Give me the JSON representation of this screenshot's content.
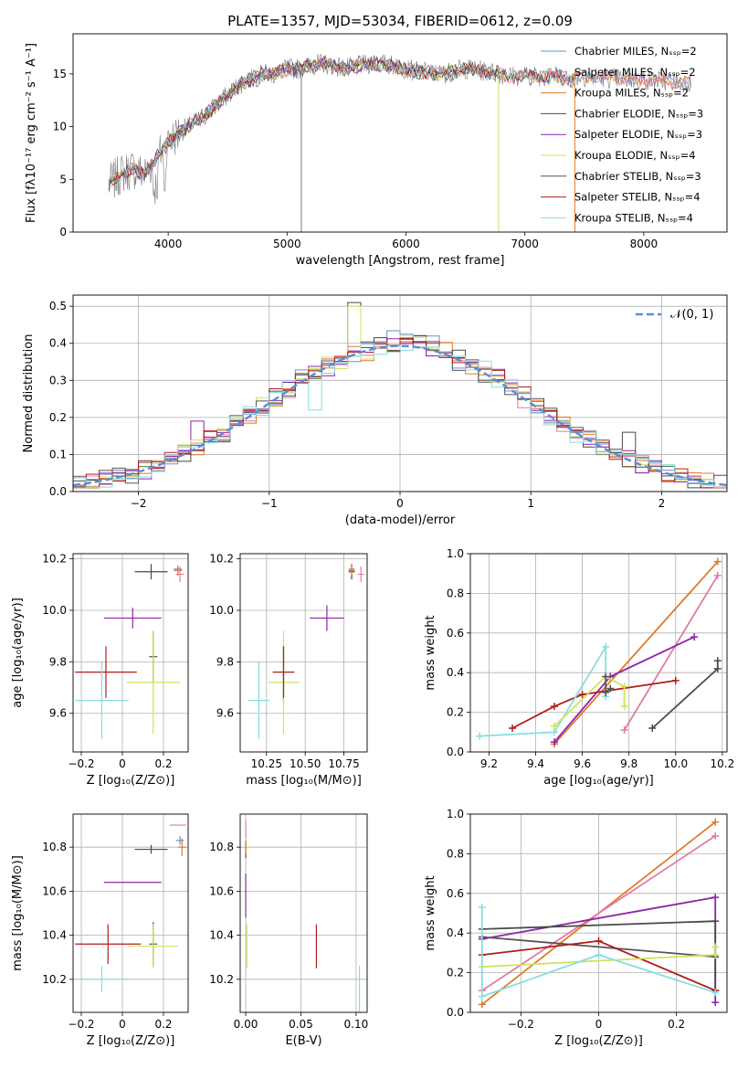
{
  "colors": {
    "chabrier_miles": "#6b8ed6",
    "salpeter_miles": "#e27ba9",
    "kroupa_miles": "#e07b2a",
    "chabrier_elodie": "#4a4a4a",
    "salpeter_elodie": "#8e24aa",
    "kroupa_elodie": "#cfe35a",
    "chabrier_stelib": "#555555",
    "salpeter_stelib": "#b21c1c",
    "kroupa_stelib": "#86dede",
    "normal": "#5b8bd9"
  },
  "chart_data": [
    {
      "id": "spectrum",
      "type": "line",
      "title": "PLATE=1357, MJD=53034, FIBERID=0612, z=0.09",
      "xlabel": "wavelength [Angstrom, rest frame]",
      "ylabel": "Flux [fλ10⁻¹⁷ erg cm⁻² s⁻¹ A⁻¹]",
      "xlim": [
        3200,
        8700
      ],
      "ylim": [
        0,
        18.8
      ],
      "xticks": [
        4000,
        5000,
        6000,
        7000,
        8000
      ],
      "yticks": [
        0,
        5,
        10,
        15
      ],
      "grid": false,
      "legend_position": "top-right",
      "continuum": {
        "x": [
          3500,
          3600,
          3700,
          3800,
          3900,
          4000,
          4100,
          4200,
          4300,
          4400,
          4500,
          4600,
          4700,
          4800,
          4900,
          5000,
          5100,
          5200,
          5300,
          5500,
          5700,
          5900,
          6100,
          6300,
          6500,
          6700,
          6900,
          7100,
          7300,
          7420
        ],
        "y": [
          4.5,
          5.5,
          6.0,
          5.5,
          7.0,
          8.5,
          9.5,
          10.2,
          11.0,
          12.0,
          13.0,
          14.0,
          14.5,
          15.0,
          15.0,
          15.5,
          15.5,
          15.8,
          16.0,
          15.5,
          16.0,
          15.8,
          15.2,
          15.0,
          15.5,
          15.2,
          14.8,
          14.8,
          14.8,
          14.5
        ]
      },
      "series": [
        {
          "name": "Chabrier MILES, N_SSP=2",
          "color_key": "chabrier_miles",
          "xmax": 8400
        },
        {
          "name": "Salpeter MILES, N_SSP=2",
          "color_key": "salpeter_miles",
          "xmax": 8400
        },
        {
          "name": "Kroupa MILES, N_SSP=2",
          "color_key": "kroupa_miles",
          "xmax": 8400
        },
        {
          "name": "Chabrier ELODIE, N_SSP=3",
          "color_key": "chabrier_elodie",
          "xmax": 6800
        },
        {
          "name": "Salpeter ELODIE, N_SSP=3",
          "color_key": "salpeter_elodie",
          "xmax": 6800
        },
        {
          "name": "Kroupa ELODIE, N_SSP=4",
          "color_key": "kroupa_elodie",
          "xmax": 6800
        },
        {
          "name": "Chabrier STELIB, N_SSP=3",
          "color_key": "chabrier_stelib",
          "xmax": 7420
        },
        {
          "name": "Salpeter STELIB, N_SSP=4",
          "color_key": "salpeter_stelib",
          "xmax": 7420
        },
        {
          "name": "Kroupa STELIB, N_SSP=4",
          "color_key": "kroupa_stelib",
          "xmax": 7420
        }
      ],
      "spikes": [
        5120,
        6780,
        7420
      ]
    },
    {
      "id": "residuals",
      "type": "histogram",
      "xlabel": "(data-model)/error",
      "ylabel": "Normed distribution",
      "xlim": [
        -2.5,
        2.5
      ],
      "ylim": [
        0,
        0.53
      ],
      "xticks": [
        -2,
        -1,
        0,
        1,
        2
      ],
      "yticks": [
        0.0,
        0.1,
        0.2,
        0.3,
        0.4,
        0.5
      ],
      "grid": true,
      "legend_position": "top-right",
      "gaussian_label": "𝒩(0, 1)",
      "bin_width": 0.1,
      "bins_start": -2.5,
      "anomalies": {
        "salpeter_elodie": [
          [
            -1.6,
            0.19
          ]
        ],
        "kroupa_elodie": [
          [
            -0.4,
            0.5
          ]
        ],
        "chabrier_elodie": [
          [
            -0.4,
            0.51
          ],
          [
            1.7,
            0.16
          ]
        ],
        "kroupa_stelib": [
          [
            -0.7,
            0.22
          ]
        ]
      }
    },
    {
      "id": "age_vs_Z",
      "type": "errorbar",
      "xlabel": "Z [log₁₀(Z/Z⊙)]",
      "ylabel": "age [log₁₀(age/yr)]",
      "xlim": [
        -0.24,
        0.32
      ],
      "ylim": [
        9.45,
        10.22
      ],
      "xticks": [
        -0.2,
        0.0,
        0.2
      ],
      "yticks": [
        9.6,
        9.8,
        10.0,
        10.2
      ],
      "points": [
        {
          "k": "chabrier_elodie",
          "x": 0.14,
          "y": 10.15,
          "xe": 0.08,
          "ye": 0.03
        },
        {
          "k": "salpeter_miles",
          "x": 0.28,
          "y": 10.14,
          "xe": 0.02,
          "ye": 0.03
        },
        {
          "k": "chabrier_miles",
          "x": 0.27,
          "y": 10.16,
          "xe": 0.02,
          "ye": 0.01
        },
        {
          "k": "kroupa_miles",
          "x": 0.27,
          "y": 10.155,
          "xe": 0.02,
          "ye": 0.02
        },
        {
          "k": "salpeter_elodie",
          "x": 0.05,
          "y": 9.97,
          "xe": 0.14,
          "ye": 0.04
        },
        {
          "k": "chabrier_stelib",
          "x": 0.15,
          "y": 9.82,
          "xe": 0.02,
          "ye": 0.1
        },
        {
          "k": "kroupa_elodie",
          "x": 0.15,
          "y": 9.72,
          "xe": 0.13,
          "ye": 0.2
        },
        {
          "k": "salpeter_stelib",
          "x": -0.08,
          "y": 9.76,
          "xe": 0.15,
          "ye": 0.1
        },
        {
          "k": "kroupa_stelib",
          "x": -0.1,
          "y": 9.65,
          "xe": 0.13,
          "ye": 0.15
        }
      ]
    },
    {
      "id": "age_vs_mass",
      "type": "errorbar",
      "xlabel": "mass [log₁₀(M/M⊙)]",
      "xlim": [
        10.08,
        10.9
      ],
      "ylim": [
        9.45,
        10.22
      ],
      "xticks": [
        10.25,
        10.5,
        10.75
      ],
      "yticks": [
        9.6,
        9.8,
        10.0,
        10.2
      ],
      "points": [
        {
          "k": "chabrier_elodie",
          "x": 10.8,
          "y": 10.15,
          "xe": 0.02,
          "ye": 0.03
        },
        {
          "k": "salpeter_miles",
          "x": 10.86,
          "y": 10.14,
          "xe": 0.02,
          "ye": 0.03
        },
        {
          "k": "chabrier_miles",
          "x": 10.8,
          "y": 10.16,
          "xe": 0.02,
          "ye": 0.01
        },
        {
          "k": "kroupa_miles",
          "x": 10.8,
          "y": 10.155,
          "xe": 0.02,
          "ye": 0.02
        },
        {
          "k": "salpeter_elodie",
          "x": 10.64,
          "y": 9.97,
          "xe": 0.11,
          "ye": 0.05
        },
        {
          "k": "chabrier_stelib",
          "x": 10.36,
          "y": 9.75,
          "xe": 0.005,
          "ye": 0.11
        },
        {
          "k": "kroupa_elodie",
          "x": 10.36,
          "y": 9.72,
          "xe": 0.1,
          "ye": 0.2
        },
        {
          "k": "salpeter_stelib",
          "x": 10.36,
          "y": 9.76,
          "xe": 0.07,
          "ye": 0.1
        },
        {
          "k": "kroupa_stelib",
          "x": 10.2,
          "y": 9.65,
          "xe": 0.07,
          "ye": 0.15
        }
      ]
    },
    {
      "id": "mass_weight_vs_age",
      "type": "line",
      "xlabel": "age [log₁₀(age/yr)]",
      "ylabel": "mass weight",
      "xlim": [
        9.12,
        10.22
      ],
      "ylim": [
        0,
        1.0
      ],
      "xticks": [
        9.2,
        9.4,
        9.6,
        9.8,
        10.0,
        10.2
      ],
      "yticks": [
        0.0,
        0.2,
        0.4,
        0.6,
        0.8,
        1.0
      ],
      "grid": true,
      "series": [
        {
          "k": "kroupa_miles",
          "x": [
            9.48,
            10.18
          ],
          "y": [
            0.04,
            0.96
          ]
        },
        {
          "k": "salpeter_miles",
          "x": [
            9.78,
            10.18
          ],
          "y": [
            0.11,
            0.89
          ]
        },
        {
          "k": "salpeter_elodie",
          "x": [
            9.48,
            9.72,
            10.08
          ],
          "y": [
            0.05,
            0.38,
            0.58
          ]
        },
        {
          "k": "chabrier_elodie",
          "x": [
            9.9,
            10.18,
            10.18
          ],
          "y": [
            0.12,
            0.42,
            0.46
          ]
        },
        {
          "k": "salpeter_stelib",
          "x": [
            9.3,
            9.48,
            9.6,
            10.0
          ],
          "y": [
            0.12,
            0.23,
            0.29,
            0.36
          ]
        },
        {
          "k": "kroupa_stelib",
          "x": [
            9.16,
            9.48,
            9.7,
            9.7
          ],
          "y": [
            0.08,
            0.1,
            0.53,
            0.28
          ]
        },
        {
          "k": "kroupa_elodie",
          "x": [
            9.48,
            9.7,
            9.78,
            9.78
          ],
          "y": [
            0.13,
            0.38,
            0.33,
            0.23
          ]
        },
        {
          "k": "chabrier_stelib",
          "x": [
            9.7,
            9.7,
            9.72
          ],
          "y": [
            0.38,
            0.3,
            0.32
          ]
        }
      ]
    },
    {
      "id": "mass_vs_Z",
      "type": "errorbar",
      "xlabel": "Z [log₁₀(Z/Z⊙)]",
      "ylabel": "mass [log₁₀(M/M⊙)]",
      "xlim": [
        -0.24,
        0.32
      ],
      "ylim": [
        10.05,
        10.95
      ],
      "xticks": [
        -0.2,
        0.0,
        0.2
      ],
      "yticks": [
        10.2,
        10.4,
        10.6,
        10.8
      ],
      "points": [
        {
          "k": "chabrier_elodie",
          "x": 0.14,
          "y": 10.79,
          "xe": 0.08,
          "ye": 0.02
        },
        {
          "k": "salpeter_miles",
          "x": 0.27,
          "y": 10.9,
          "xe": 0.04,
          "ye": 0.0
        },
        {
          "k": "chabrier_miles",
          "x": 0.28,
          "y": 10.83,
          "xe": 0.02,
          "ye": 0.02
        },
        {
          "k": "kroupa_miles",
          "x": 0.29,
          "y": 10.8,
          "xe": 0.02,
          "ye": 0.04
        },
        {
          "k": "salpeter_elodie",
          "x": 0.05,
          "y": 10.64,
          "xe": 0.14,
          "ye": 0.0
        },
        {
          "k": "chabrier_stelib",
          "x": 0.15,
          "y": 10.36,
          "xe": 0.02,
          "ye": 0.1
        },
        {
          "k": "kroupa_elodie",
          "x": 0.15,
          "y": 10.35,
          "xe": 0.12,
          "ye": 0.1
        },
        {
          "k": "salpeter_stelib",
          "x": -0.07,
          "y": 10.36,
          "xe": 0.16,
          "ye": 0.09
        },
        {
          "k": "kroupa_stelib",
          "x": -0.1,
          "y": 10.2,
          "xe": 0.13,
          "ye": 0.06
        }
      ]
    },
    {
      "id": "mass_vs_ebv",
      "type": "errorbar",
      "xlabel": "E(B-V)",
      "xlim": [
        -0.005,
        0.11
      ],
      "ylim": [
        10.05,
        10.95
      ],
      "xticks": [
        0.0,
        0.05,
        0.1
      ],
      "yticks": [
        10.2,
        10.4,
        10.6,
        10.8
      ],
      "points": [
        {
          "k": "salpeter_miles",
          "x": 0.0,
          "y": 10.88,
          "xe": 0.0,
          "ye": 0.04
        },
        {
          "k": "chabrier_elodie",
          "x": 0.0,
          "y": 10.79,
          "xe": 0.0,
          "ye": 0.04
        },
        {
          "k": "kroupa_miles",
          "x": 0.0,
          "y": 10.8,
          "xe": 0.0,
          "ye": 0.03
        },
        {
          "k": "salpeter_elodie",
          "x": 0.0,
          "y": 10.58,
          "xe": 0.0,
          "ye": 0.1
        },
        {
          "k": "kroupa_elodie",
          "x": 0.001,
          "y": 10.35,
          "xe": 0.0,
          "ye": 0.1
        },
        {
          "k": "salpeter_stelib",
          "x": 0.064,
          "y": 10.35,
          "xe": 0.0,
          "ye": 0.1
        },
        {
          "k": "kroupa_stelib",
          "x": 0.103,
          "y": 10.15,
          "xe": 0.0,
          "ye": 0.11
        }
      ]
    },
    {
      "id": "mass_weight_vs_Z",
      "type": "line",
      "xlabel": "Z [log₁₀(Z/Z⊙)]",
      "ylabel": "mass weight",
      "xlim": [
        -0.33,
        0.33
      ],
      "ylim": [
        0,
        1.0
      ],
      "xticks": [
        -0.2,
        0.0,
        0.2
      ],
      "yticks": [
        0.0,
        0.2,
        0.4,
        0.6,
        0.8,
        1.0
      ],
      "grid": true,
      "series": [
        {
          "k": "kroupa_miles",
          "x": [
            -0.3,
            0.3
          ],
          "y": [
            0.04,
            0.96
          ]
        },
        {
          "k": "salpeter_miles",
          "x": [
            -0.3,
            0.3
          ],
          "y": [
            0.11,
            0.89
          ]
        },
        {
          "k": "salpeter_elodie",
          "x": [
            -0.3,
            0.3,
            0.3
          ],
          "y": [
            0.37,
            0.58,
            0.05
          ]
        },
        {
          "k": "chabrier_elodie",
          "x": [
            -0.3,
            0.3,
            0.3
          ],
          "y": [
            0.42,
            0.46,
            0.11
          ]
        },
        {
          "k": "chabrier_stelib",
          "x": [
            -0.3,
            0.3
          ],
          "y": [
            0.38,
            0.28
          ]
        },
        {
          "k": "salpeter_stelib",
          "x": [
            -0.3,
            0.0,
            0.3
          ],
          "y": [
            0.29,
            0.36,
            0.11
          ]
        },
        {
          "k": "kroupa_elodie",
          "x": [
            -0.3,
            0.3,
            0.3
          ],
          "y": [
            0.23,
            0.29,
            0.33
          ]
        },
        {
          "k": "kroupa_stelib",
          "x": [
            -0.3,
            -0.3,
            0.0,
            0.3
          ],
          "y": [
            0.53,
            0.08,
            0.29,
            0.1
          ]
        }
      ]
    }
  ]
}
